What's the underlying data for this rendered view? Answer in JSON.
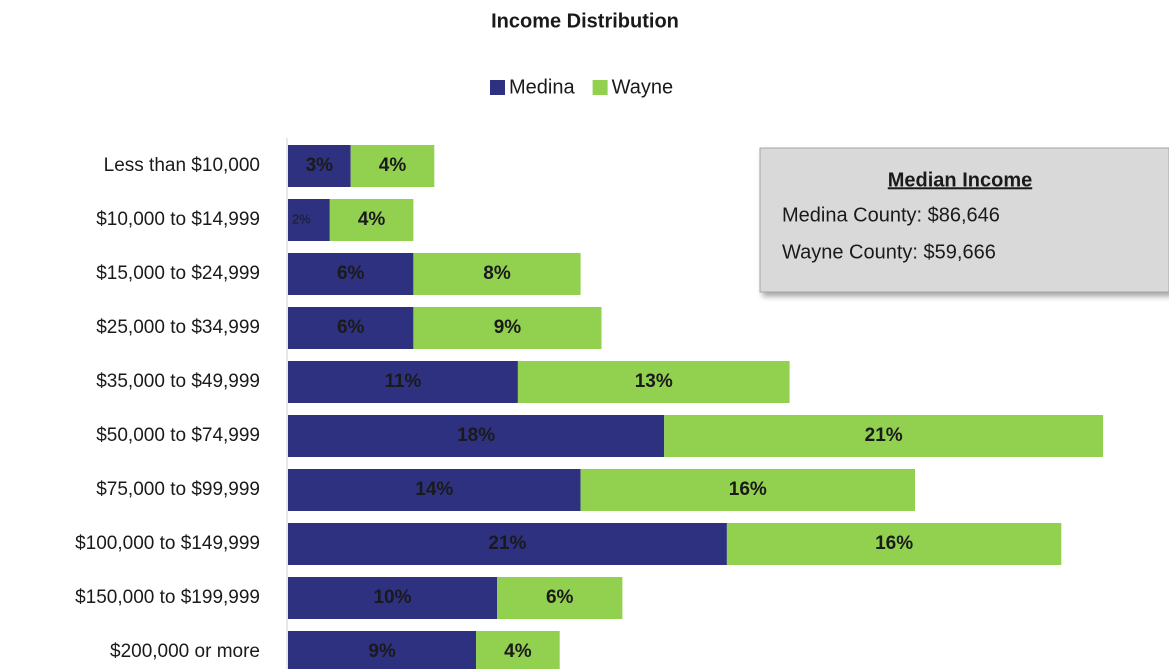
{
  "chart_data": {
    "type": "stacked-bar-horizontal",
    "title": "Income Distribution",
    "categories": [
      "Less than $10,000",
      "$10,000 to $14,999",
      "$15,000 to $24,999",
      "$25,000 to $34,999",
      "$35,000 to $49,999",
      "$50,000 to $74,999",
      "$75,000 to $99,999",
      "$100,000 to $149,999",
      "$150,000 to $199,999",
      "$200,000 or more"
    ],
    "series": [
      {
        "name": "Medina",
        "color": "#2e3180",
        "values": [
          3,
          2,
          6,
          6,
          11,
          18,
          14,
          21,
          10,
          9
        ],
        "value_labels": [
          "3%",
          "2%",
          "6%",
          "6%",
          "11%",
          "18%",
          "14%",
          "21%",
          "10%",
          "9%"
        ]
      },
      {
        "name": "Wayne",
        "color": "#92d050",
        "values": [
          4,
          4,
          8,
          9,
          13,
          21,
          16,
          16,
          6,
          4
        ],
        "value_labels": [
          "4%",
          "4%",
          "8%",
          "9%",
          "13%",
          "21%",
          "16%",
          "16%",
          "6%",
          "4%"
        ]
      }
    ],
    "legend": "top",
    "annotation": {
      "title": "Median Income",
      "lines": [
        "Medina County: $86,646",
        "Wayne County: $59,666"
      ]
    }
  }
}
